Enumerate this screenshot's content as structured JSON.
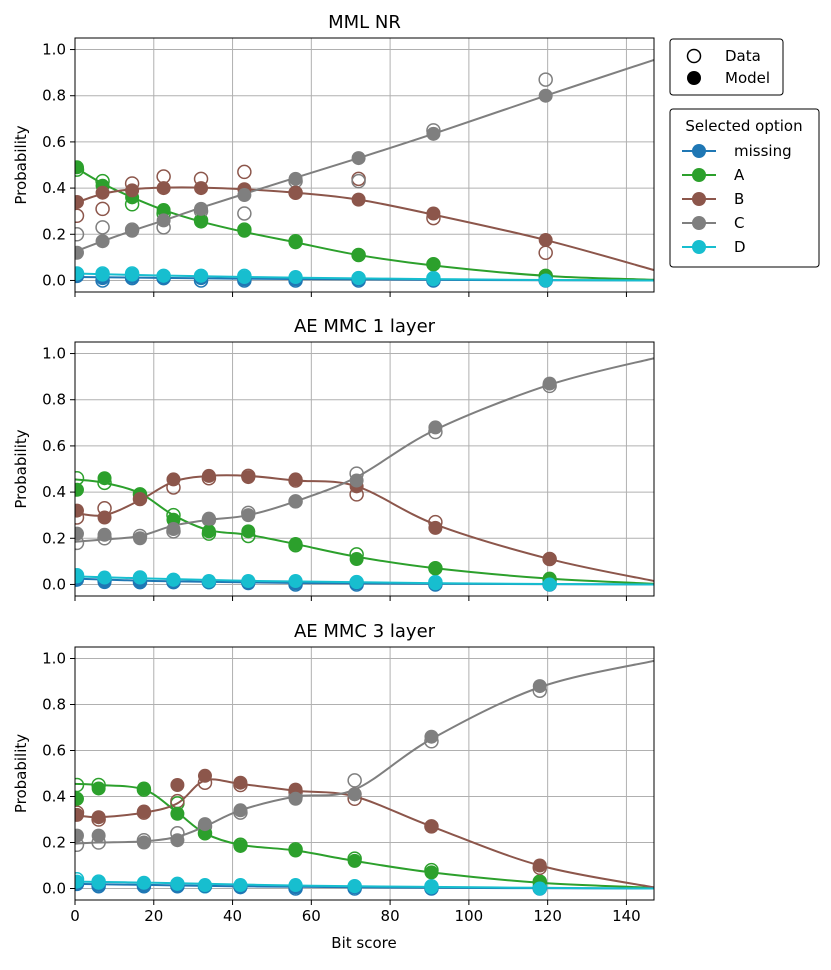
{
  "figure": {
    "xlabel": "Bit score",
    "ylabel": "Probability",
    "xlim": [
      0,
      147
    ],
    "ylim": [
      -0.05,
      1.05
    ],
    "xticks": [
      0,
      20,
      40,
      60,
      80,
      100,
      120,
      140
    ],
    "yticks": [
      0.0,
      0.2,
      0.4,
      0.6,
      0.8,
      1.0
    ],
    "grid": true
  },
  "legend_markers": {
    "placement": "top-right, outside axes",
    "items": [
      {
        "label": "Data",
        "style": "open-circle"
      },
      {
        "label": "Model",
        "style": "filled-circle"
      }
    ]
  },
  "legend_options": {
    "title": "Selected option",
    "placement": "right, outside axes",
    "items": [
      {
        "label": "missing",
        "color": "#1f77b4"
      },
      {
        "label": "A",
        "color": "#2ca02c"
      },
      {
        "label": "B",
        "color": "#8c564b"
      },
      {
        "label": "C",
        "color": "#7f7f7f"
      },
      {
        "label": "D",
        "color": "#17becf"
      }
    ]
  },
  "chart_data": [
    {
      "type": "line",
      "title": "MML NR",
      "x": [
        0.5,
        7,
        14.5,
        22.5,
        32,
        43,
        56,
        72,
        91,
        119.5
      ],
      "series": [
        {
          "name": "missing",
          "color": "#1f77b4",
          "curve": [
            [
              0,
              0.015
            ],
            [
              40,
              0.008
            ],
            [
              60,
              0.006
            ],
            [
              100,
              0.002
            ],
            [
              147,
              0.0
            ]
          ],
          "model": [
            0.02,
            0.01,
            0.015,
            0.01,
            0.01,
            0.005,
            0.005,
            0.005,
            0.0,
            0.0
          ],
          "data": [
            0.02,
            0.0,
            0.01,
            0.01,
            0.0,
            0.0,
            0.0,
            0.0,
            0.0,
            0.0
          ]
        },
        {
          "name": "A",
          "color": "#2ca02c",
          "curve": [
            [
              0,
              0.49
            ],
            [
              7,
              0.42
            ],
            [
              14.5,
              0.36
            ],
            [
              22.5,
              0.305
            ],
            [
              32,
              0.255
            ],
            [
              43,
              0.21
            ],
            [
              56,
              0.165
            ],
            [
              72,
              0.11
            ],
            [
              91,
              0.065
            ],
            [
              119.5,
              0.02
            ],
            [
              147,
              0.003
            ]
          ],
          "model": [
            0.49,
            0.41,
            0.36,
            0.305,
            0.255,
            0.215,
            0.165,
            0.11,
            0.07,
            0.02
          ],
          "data": [
            0.48,
            0.43,
            0.33,
            0.29,
            0.26,
            0.22,
            0.17,
            0.11,
            0.07,
            0.02
          ]
        },
        {
          "name": "B",
          "color": "#8c564b",
          "curve": [
            [
              0,
              0.335
            ],
            [
              7,
              0.375
            ],
            [
              14.5,
              0.395
            ],
            [
              22.5,
              0.402
            ],
            [
              32,
              0.402
            ],
            [
              43,
              0.395
            ],
            [
              56,
              0.38
            ],
            [
              72,
              0.35
            ],
            [
              91,
              0.285
            ],
            [
              119.5,
              0.175
            ],
            [
              147,
              0.045
            ]
          ],
          "model": [
            0.34,
            0.38,
            0.39,
            0.4,
            0.4,
            0.395,
            0.38,
            0.35,
            0.29,
            0.175
          ],
          "data": [
            0.28,
            0.31,
            0.42,
            0.45,
            0.44,
            0.47,
            0.38,
            0.44,
            0.27,
            0.12
          ]
        },
        {
          "name": "C",
          "color": "#7f7f7f",
          "curve": [
            [
              0,
              0.125
            ],
            [
              7,
              0.17
            ],
            [
              14.5,
              0.215
            ],
            [
              22.5,
              0.26
            ],
            [
              32,
              0.315
            ],
            [
              43,
              0.375
            ],
            [
              56,
              0.445
            ],
            [
              72,
              0.53
            ],
            [
              91,
              0.635
            ],
            [
              119.5,
              0.8
            ],
            [
              147,
              0.955
            ]
          ],
          "model": [
            0.12,
            0.17,
            0.215,
            0.26,
            0.31,
            0.37,
            0.44,
            0.53,
            0.635,
            0.8
          ],
          "data": [
            0.2,
            0.23,
            0.22,
            0.23,
            0.3,
            0.29,
            0.43,
            0.43,
            0.65,
            0.87
          ]
        },
        {
          "name": "D",
          "color": "#17becf",
          "curve": [
            [
              0,
              0.03
            ],
            [
              20,
              0.022
            ],
            [
              40,
              0.016
            ],
            [
              60,
              0.011
            ],
            [
              90,
              0.006
            ],
            [
              119.5,
              0.002
            ],
            [
              147,
              0.0
            ]
          ],
          "model": [
            0.03,
            0.025,
            0.025,
            0.02,
            0.02,
            0.015,
            0.015,
            0.01,
            0.005,
            0.0
          ],
          "data": [
            0.03,
            0.03,
            0.03,
            0.02,
            0.02,
            0.02,
            0.01,
            0.01,
            0.01,
            0.01
          ]
        }
      ]
    },
    {
      "type": "line",
      "title": "AE MMC 1 layer",
      "x": [
        0.5,
        7.5,
        16.5,
        25,
        34,
        44,
        56,
        71.5,
        91.5,
        120.5
      ],
      "series": [
        {
          "name": "missing",
          "color": "#1f77b4",
          "curve": [
            [
              0,
              0.025
            ],
            [
              20,
              0.015
            ],
            [
              40,
              0.01
            ],
            [
              60,
              0.006
            ],
            [
              90,
              0.003
            ],
            [
              147,
              0.0
            ]
          ],
          "model": [
            0.02,
            0.01,
            0.01,
            0.01,
            0.01,
            0.005,
            0.005,
            0.005,
            0.0,
            0.0
          ],
          "data": [
            0.03,
            0.02,
            0.01,
            0.01,
            0.01,
            0.01,
            0.0,
            0.0,
            0.0,
            0.0
          ]
        },
        {
          "name": "A",
          "color": "#2ca02c",
          "curve": [
            [
              0,
              0.455
            ],
            [
              7.5,
              0.44
            ],
            [
              16.5,
              0.395
            ],
            [
              25,
              0.3
            ],
            [
              34,
              0.235
            ],
            [
              44,
              0.215
            ],
            [
              56,
              0.175
            ],
            [
              71.5,
              0.12
            ],
            [
              91.5,
              0.07
            ],
            [
              120.5,
              0.025
            ],
            [
              147,
              0.003
            ]
          ],
          "model": [
            0.41,
            0.46,
            0.39,
            0.28,
            0.23,
            0.23,
            0.175,
            0.11,
            0.07,
            0.025
          ],
          "data": [
            0.46,
            0.44,
            0.39,
            0.3,
            0.22,
            0.21,
            0.17,
            0.13,
            0.07,
            0.02
          ]
        },
        {
          "name": "B",
          "color": "#8c564b",
          "curve": [
            [
              0,
              0.31
            ],
            [
              7.5,
              0.3
            ],
            [
              16.5,
              0.365
            ],
            [
              25,
              0.445
            ],
            [
              34,
              0.47
            ],
            [
              44,
              0.47
            ],
            [
              56,
              0.45
            ],
            [
              71.5,
              0.425
            ],
            [
              91.5,
              0.26
            ],
            [
              120.5,
              0.11
            ],
            [
              147,
              0.015
            ]
          ],
          "model": [
            0.32,
            0.29,
            0.37,
            0.455,
            0.47,
            0.465,
            0.455,
            0.425,
            0.245,
            0.11
          ],
          "data": [
            0.29,
            0.33,
            0.37,
            0.42,
            0.46,
            0.47,
            0.45,
            0.39,
            0.27,
            0.11
          ]
        },
        {
          "name": "C",
          "color": "#7f7f7f",
          "curve": [
            [
              0,
              0.185
            ],
            [
              7.5,
              0.195
            ],
            [
              16.5,
              0.21
            ],
            [
              25,
              0.255
            ],
            [
              34,
              0.28
            ],
            [
              44,
              0.3
            ],
            [
              56,
              0.36
            ],
            [
              71.5,
              0.465
            ],
            [
              91.5,
              0.67
            ],
            [
              120.5,
              0.865
            ],
            [
              147,
              0.98
            ]
          ],
          "model": [
            0.22,
            0.215,
            0.2,
            0.24,
            0.285,
            0.3,
            0.36,
            0.45,
            0.68,
            0.87
          ],
          "data": [
            0.18,
            0.2,
            0.21,
            0.23,
            0.28,
            0.31,
            0.36,
            0.48,
            0.66,
            0.86
          ]
        },
        {
          "name": "D",
          "color": "#17becf",
          "curve": [
            [
              0,
              0.035
            ],
            [
              20,
              0.025
            ],
            [
              40,
              0.017
            ],
            [
              60,
              0.012
            ],
            [
              90,
              0.006
            ],
            [
              120.5,
              0.002
            ],
            [
              147,
              0.0
            ]
          ],
          "model": [
            0.035,
            0.03,
            0.03,
            0.02,
            0.015,
            0.015,
            0.015,
            0.01,
            0.005,
            0.0
          ],
          "data": [
            0.04,
            0.02,
            0.03,
            0.02,
            0.01,
            0.01,
            0.01,
            0.01,
            0.01,
            0.01
          ]
        }
      ]
    },
    {
      "type": "line",
      "title": "AE MMC 3 layer",
      "x": [
        0.5,
        6,
        17.5,
        26,
        33,
        42,
        56,
        71,
        90.5,
        118
      ],
      "series": [
        {
          "name": "missing",
          "color": "#1f77b4",
          "curve": [
            [
              0,
              0.02
            ],
            [
              20,
              0.015
            ],
            [
              40,
              0.01
            ],
            [
              60,
              0.007
            ],
            [
              90,
              0.003
            ],
            [
              147,
              0.0
            ]
          ],
          "model": [
            0.02,
            0.015,
            0.01,
            0.01,
            0.01,
            0.005,
            0.005,
            0.005,
            0.0,
            0.0
          ],
          "data": [
            0.02,
            0.01,
            0.01,
            0.01,
            0.01,
            0.01,
            0.0,
            0.0,
            0.0,
            0.0
          ]
        },
        {
          "name": "A",
          "color": "#2ca02c",
          "curve": [
            [
              0,
              0.455
            ],
            [
              6,
              0.45
            ],
            [
              17.5,
              0.43
            ],
            [
              26,
              0.33
            ],
            [
              33,
              0.24
            ],
            [
              42,
              0.19
            ],
            [
              56,
              0.165
            ],
            [
              71,
              0.12
            ],
            [
              90.5,
              0.07
            ],
            [
              118,
              0.025
            ],
            [
              147,
              0.003
            ]
          ],
          "model": [
            0.39,
            0.435,
            0.435,
            0.325,
            0.24,
            0.185,
            0.165,
            0.12,
            0.07,
            0.025
          ],
          "data": [
            0.45,
            0.45,
            0.43,
            0.37,
            0.24,
            0.19,
            0.17,
            0.13,
            0.08,
            0.03
          ]
        },
        {
          "name": "B",
          "color": "#8c564b",
          "curve": [
            [
              0,
              0.32
            ],
            [
              6,
              0.31
            ],
            [
              17.5,
              0.33
            ],
            [
              26,
              0.37
            ],
            [
              33,
              0.47
            ],
            [
              42,
              0.455
            ],
            [
              56,
              0.425
            ],
            [
              71,
              0.4
            ],
            [
              90.5,
              0.27
            ],
            [
              118,
              0.1
            ],
            [
              147,
              0.005
            ]
          ],
          "model": [
            0.32,
            0.31,
            0.335,
            0.45,
            0.49,
            0.46,
            0.43,
            0.41,
            0.27,
            0.1
          ],
          "data": [
            0.33,
            0.3,
            0.33,
            0.38,
            0.46,
            0.45,
            0.42,
            0.39,
            0.27,
            0.09
          ]
        },
        {
          "name": "C",
          "color": "#7f7f7f",
          "curve": [
            [
              0,
              0.195
            ],
            [
              6,
              0.2
            ],
            [
              17.5,
              0.205
            ],
            [
              26,
              0.225
            ],
            [
              33,
              0.27
            ],
            [
              42,
              0.34
            ],
            [
              56,
              0.4
            ],
            [
              71,
              0.43
            ],
            [
              90.5,
              0.65
            ],
            [
              118,
              0.875
            ],
            [
              147,
              0.99
            ]
          ],
          "model": [
            0.23,
            0.23,
            0.2,
            0.21,
            0.28,
            0.34,
            0.39,
            0.41,
            0.66,
            0.88
          ],
          "data": [
            0.19,
            0.2,
            0.21,
            0.24,
            0.27,
            0.33,
            0.4,
            0.47,
            0.64,
            0.86
          ]
        },
        {
          "name": "D",
          "color": "#17becf",
          "curve": [
            [
              0,
              0.03
            ],
            [
              20,
              0.025
            ],
            [
              40,
              0.018
            ],
            [
              60,
              0.012
            ],
            [
              90,
              0.007
            ],
            [
              118,
              0.003
            ],
            [
              147,
              0.0
            ]
          ],
          "model": [
            0.03,
            0.025,
            0.025,
            0.02,
            0.015,
            0.015,
            0.015,
            0.01,
            0.005,
            0.0
          ],
          "data": [
            0.04,
            0.03,
            0.02,
            0.02,
            0.01,
            0.01,
            0.01,
            0.01,
            0.01,
            0.01
          ]
        }
      ]
    }
  ]
}
